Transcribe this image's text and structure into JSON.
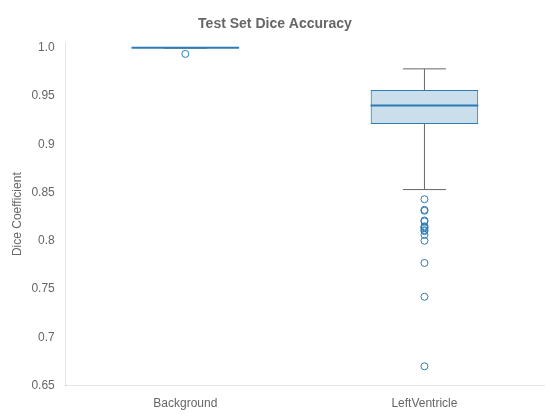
{
  "chart_data": {
    "type": "box",
    "title": "Test Set Dice Accuracy",
    "ylabel": "Dice Coefficient",
    "categories": [
      "Background",
      "LeftVentricle"
    ],
    "boxes": [
      {
        "median": 0.9998,
        "q1": 0.9997,
        "q3": 0.9999,
        "whisker_low": 0.9995,
        "whisker_high": 1.0,
        "outliers": [
          0.9935
        ]
      },
      {
        "median": 0.94,
        "q1": 0.921,
        "q3": 0.956,
        "whisker_low": 0.853,
        "whisker_high": 0.978,
        "outliers": [
          0.843,
          0.832,
          0.831,
          0.821,
          0.82,
          0.815,
          0.814,
          0.813,
          0.811,
          0.81,
          0.806,
          0.8,
          0.777,
          0.742,
          0.67
        ]
      }
    ],
    "color": "#2b7cb5",
    "ylim": [
      0.65,
      1.005
    ],
    "yticks": [
      0.65,
      0.7,
      0.75,
      0.8,
      0.85,
      0.9,
      0.95,
      {
        "value": 1.0,
        "label": "1.0"
      }
    ],
    "grid": false
  }
}
